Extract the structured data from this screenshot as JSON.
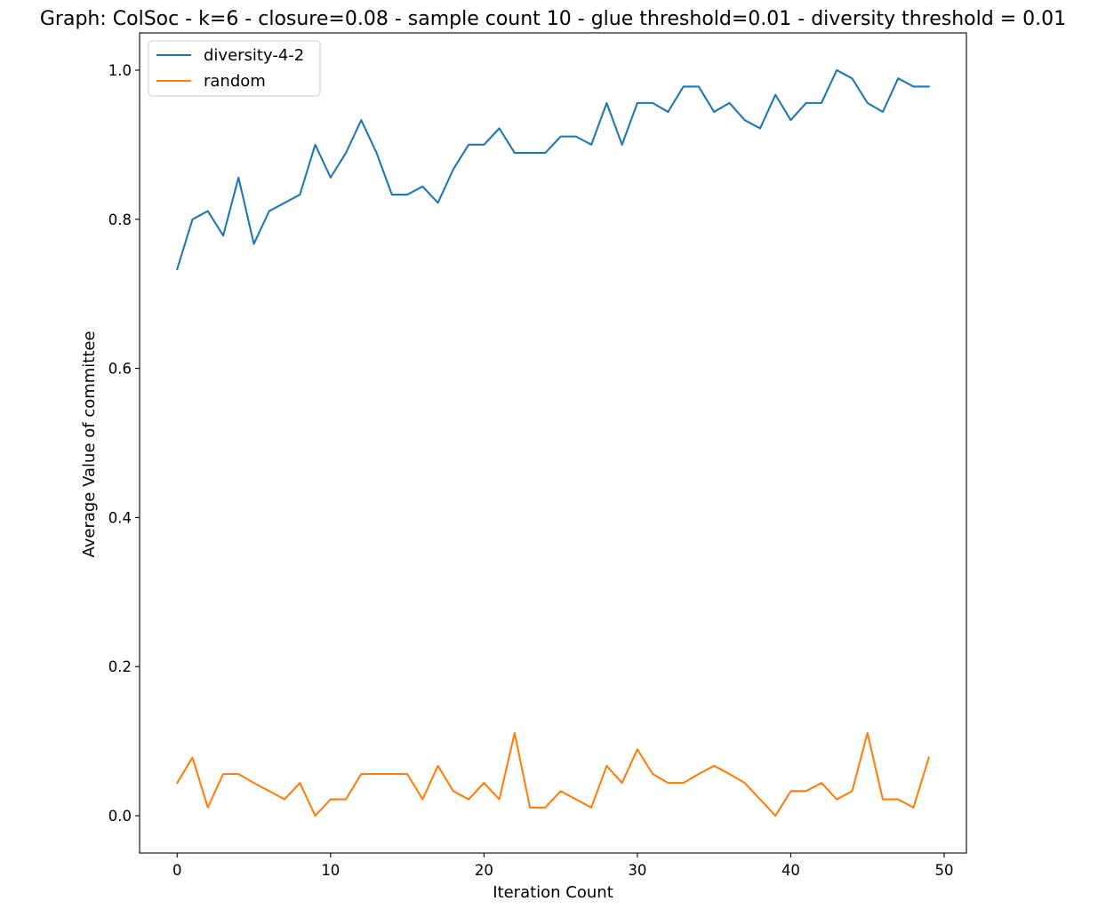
{
  "chart_data": {
    "type": "line",
    "title": "Graph: ColSoc - k=6 - closure=0.08 - sample count 10 - glue threshold=0.01 - diversity threshold = 0.01",
    "xlabel": "Iteration Count",
    "ylabel": "Average Value of committee",
    "xlim": [
      -2.45,
      51.45
    ],
    "ylim": [
      -0.05,
      1.05
    ],
    "xticks": [
      0,
      10,
      20,
      30,
      40,
      50
    ],
    "yticks": [
      0.0,
      0.2,
      0.4,
      0.6,
      0.8,
      1.0
    ],
    "xtick_labels": [
      "0",
      "10",
      "20",
      "30",
      "40",
      "50"
    ],
    "ytick_labels": [
      "0.0",
      "0.2",
      "0.4",
      "0.6",
      "0.8",
      "1.0"
    ],
    "grid": false,
    "legend": {
      "placement": "top-left"
    },
    "x": [
      0,
      1,
      2,
      3,
      4,
      5,
      6,
      7,
      8,
      9,
      10,
      11,
      12,
      13,
      14,
      15,
      16,
      17,
      18,
      19,
      20,
      21,
      22,
      23,
      24,
      25,
      26,
      27,
      28,
      29,
      30,
      31,
      32,
      33,
      34,
      35,
      36,
      37,
      38,
      39,
      40,
      41,
      42,
      43,
      44,
      45,
      46,
      47,
      48,
      49
    ],
    "series": [
      {
        "name": "diversity-4-2",
        "color": "#1f77b4",
        "values": [
          0.733,
          0.8,
          0.811,
          0.778,
          0.856,
          0.767,
          0.811,
          0.822,
          0.833,
          0.9,
          0.856,
          0.889,
          0.933,
          0.889,
          0.833,
          0.833,
          0.844,
          0.822,
          0.867,
          0.9,
          0.9,
          0.922,
          0.889,
          0.889,
          0.889,
          0.911,
          0.911,
          0.9,
          0.956,
          0.9,
          0.956,
          0.956,
          0.944,
          0.978,
          0.978,
          0.944,
          0.956,
          0.933,
          0.922,
          0.967,
          0.933,
          0.956,
          0.956,
          1.0,
          0.989,
          0.956,
          0.944,
          0.989,
          0.978,
          0.978
        ]
      },
      {
        "name": "random",
        "color": "#ff7f0e",
        "values": [
          0.044,
          0.078,
          0.011,
          0.056,
          0.056,
          0.044,
          0.033,
          0.022,
          0.044,
          0.0,
          0.022,
          0.022,
          0.056,
          0.056,
          0.056,
          0.056,
          0.022,
          0.067,
          0.033,
          0.022,
          0.044,
          0.022,
          0.111,
          0.011,
          0.011,
          0.033,
          0.022,
          0.011,
          0.067,
          0.044,
          0.089,
          0.056,
          0.044,
          0.044,
          0.056,
          0.067,
          0.056,
          0.044,
          0.022,
          0.0,
          0.033,
          0.033,
          0.044,
          0.022,
          0.033,
          0.111,
          0.022,
          0.022,
          0.011,
          0.078
        ]
      }
    ]
  }
}
